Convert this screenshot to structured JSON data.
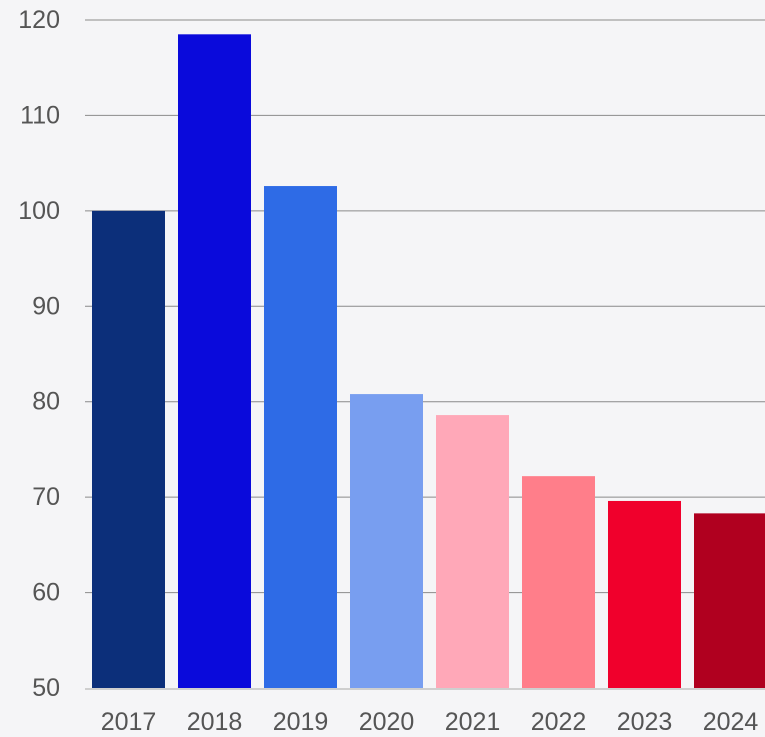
{
  "chart_data": {
    "type": "bar",
    "title": "",
    "xlabel": "",
    "ylabel": "",
    "categories": [
      "2017",
      "2018",
      "2019",
      "2020",
      "2021",
      "2022",
      "2023",
      "2024"
    ],
    "values": [
      100,
      118.5,
      102.6,
      80.8,
      78.6,
      72.2,
      69.6,
      68.3
    ],
    "colors": [
      "#0c2f7a",
      "#0a0adb",
      "#2e6be6",
      "#789ef0",
      "#ffa8b8",
      "#ff7e8a",
      "#f0002c",
      "#b0001f"
    ],
    "ylim": [
      50,
      120
    ],
    "y_ticks": [
      50,
      60,
      70,
      80,
      90,
      100,
      110,
      120
    ],
    "y_tick_labels": [
      "50",
      "60",
      "70",
      "80",
      "90",
      "100",
      "110",
      "120"
    ],
    "grid": true,
    "legend": "none"
  }
}
